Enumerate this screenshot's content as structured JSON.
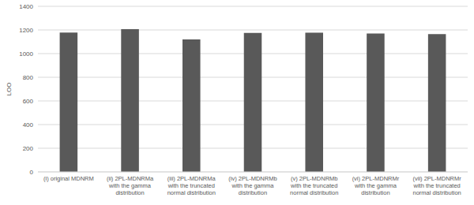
{
  "chart_data": {
    "type": "bar",
    "categories": [
      "(i) original MDNRM",
      "(ii) 2PL-MDNRMa with the gamma distribution",
      "(iii) 2PL-MDNRMa with the truncated normal distribution",
      "(iv) 2PL-MDNRMb with the gamma distribution",
      "(v) 2PL-MDNRMb with the truncated normal distribution",
      "(vi) 2PL-MDNRMr with the gamma distribution",
      "(vii) 2PL-MDNRMr with the truncated normal distribution"
    ],
    "values": [
      1178,
      1207,
      1120,
      1175,
      1177,
      1170,
      1165
    ],
    "color": "#595959",
    "y_label": "LOO",
    "ylim": [
      0,
      1400
    ],
    "yticks": [
      0,
      200,
      400,
      600,
      800,
      1000,
      1200,
      1400
    ],
    "grid": true
  }
}
